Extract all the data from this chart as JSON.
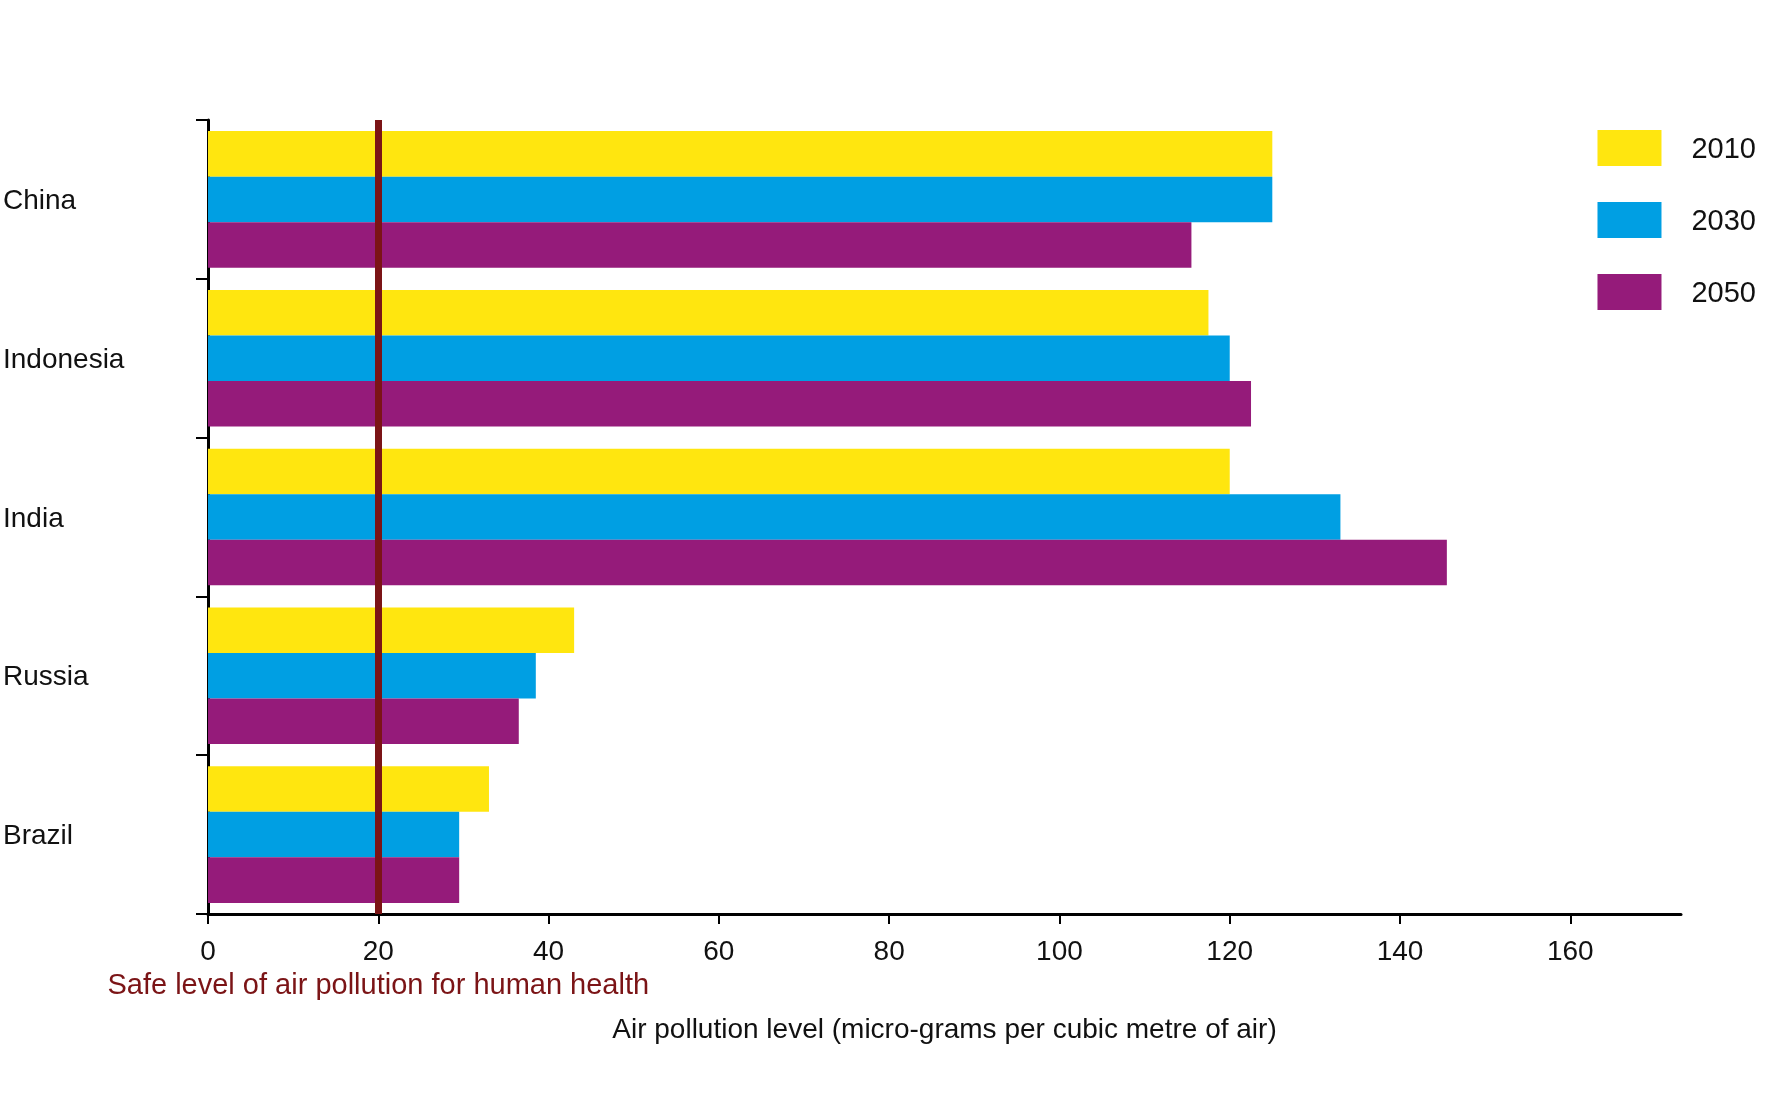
{
  "chart_data": {
    "type": "bar",
    "orientation": "horizontal",
    "xlabel": "Air pollution level (micro-grams per cubic metre of air)",
    "categories": [
      "China",
      "Indonesia",
      "India",
      "Russia",
      "Brazil"
    ],
    "series": [
      {
        "name": "2010",
        "color": "#ffe60f",
        "values": [
          125,
          117.5,
          120,
          43,
          33
        ]
      },
      {
        "name": "2030",
        "color": "#009fe3",
        "values": [
          125,
          120,
          133,
          38.5,
          29.5
        ]
      },
      {
        "name": "2050",
        "color": "#951b7a",
        "values": [
          115.5,
          122.5,
          145.5,
          36.5,
          29.5
        ]
      }
    ],
    "xlim": [
      0,
      173
    ],
    "xticks": [
      0,
      20,
      40,
      60,
      80,
      100,
      120,
      140,
      160
    ],
    "ref_lines": [
      {
        "axis": "x",
        "value": 20,
        "label": "Safe level of air pollution for human health",
        "color": "#7b1416"
      }
    ],
    "legend": "top right",
    "grid": false
  }
}
